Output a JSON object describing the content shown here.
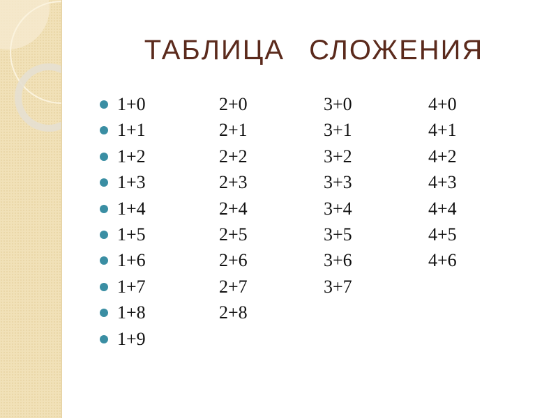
{
  "title": "ТАБЛИЦА СЛОЖЕНИЯ",
  "colors": {
    "title": "#5b2a1c",
    "bullet": "#3a8ea3",
    "sidebar": "#f1e1b8"
  },
  "columns": [
    [
      "1+0",
      "1+1",
      "1+2",
      "1+3",
      "1+4",
      "1+5",
      "1+6",
      "1+7",
      "1+8",
      "1+9"
    ],
    [
      "2+0",
      "2+1",
      "2+2",
      "2+3",
      "2+4",
      "2+5",
      "2+6",
      "2+7",
      "2+8"
    ],
    [
      "3+0",
      "3+1",
      "3+2",
      "3+3",
      "3+4",
      "3+5",
      "3+6",
      "3+7"
    ],
    [
      "4+0",
      "4+1",
      "4+2",
      "4+3",
      "4+4",
      "4+5",
      "4+6"
    ]
  ]
}
